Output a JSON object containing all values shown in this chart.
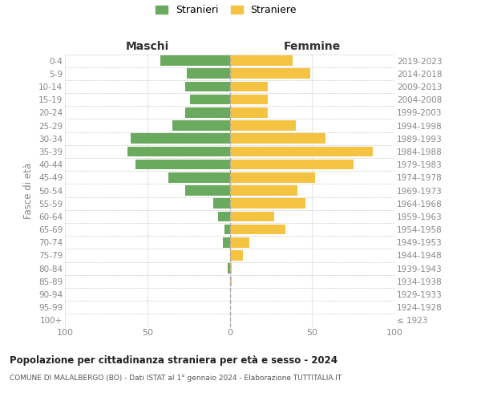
{
  "age_groups": [
    "100+",
    "95-99",
    "90-94",
    "85-89",
    "80-84",
    "75-79",
    "70-74",
    "65-69",
    "60-64",
    "55-59",
    "50-54",
    "45-49",
    "40-44",
    "35-39",
    "30-34",
    "25-29",
    "20-24",
    "15-19",
    "10-14",
    "5-9",
    "0-4"
  ],
  "birth_years": [
    "≤ 1923",
    "1924-1928",
    "1929-1933",
    "1934-1938",
    "1939-1943",
    "1944-1948",
    "1949-1953",
    "1954-1958",
    "1959-1963",
    "1964-1968",
    "1969-1973",
    "1974-1978",
    "1979-1983",
    "1984-1988",
    "1989-1993",
    "1994-1998",
    "1999-2003",
    "2004-2008",
    "2009-2013",
    "2014-2018",
    "2019-2023"
  ],
  "maschi": [
    0,
    0,
    0,
    0,
    1,
    0,
    4,
    3,
    7,
    10,
    27,
    37,
    57,
    62,
    60,
    35,
    27,
    24,
    27,
    26,
    42
  ],
  "femmine": [
    0,
    0,
    0,
    1,
    1,
    8,
    12,
    34,
    27,
    46,
    41,
    52,
    75,
    87,
    58,
    40,
    23,
    23,
    23,
    49,
    38
  ],
  "maschi_color": "#6aaa5e",
  "femmine_color": "#f5c342",
  "title": "Popolazione per cittadinanza straniera per età e sesso - 2024",
  "subtitle": "COMUNE DI MALALBERGO (BO) - Dati ISTAT al 1° gennaio 2024 - Elaborazione TUTTITALIA.IT",
  "ylabel_left": "Fasce di età",
  "xlabel_left": "Maschi",
  "xlabel_right": "Femmine",
  "legend_maschi": "Stranieri",
  "legend_femmine": "Straniere",
  "xlim": 100,
  "background_color": "#ffffff",
  "grid_color": "#cccccc",
  "dashed_line_color": "#aaaaaa",
  "tick_color": "#888888",
  "title_color": "#222222",
  "subtitle_color": "#555555"
}
